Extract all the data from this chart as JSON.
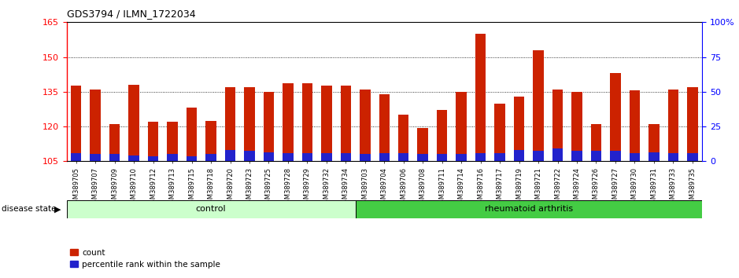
{
  "title": "GDS3794 / ILMN_1722034",
  "categories": [
    "GSM389705",
    "GSM389707",
    "GSM389709",
    "GSM389710",
    "GSM389712",
    "GSM389713",
    "GSM389715",
    "GSM389718",
    "GSM389720",
    "GSM389723",
    "GSM389725",
    "GSM389728",
    "GSM389729",
    "GSM389732",
    "GSM389734",
    "GSM389703",
    "GSM389704",
    "GSM389706",
    "GSM389708",
    "GSM389711",
    "GSM389714",
    "GSM389716",
    "GSM389717",
    "GSM389719",
    "GSM389721",
    "GSM389722",
    "GSM389724",
    "GSM389726",
    "GSM389727",
    "GSM389730",
    "GSM389731",
    "GSM389733",
    "GSM389735"
  ],
  "counts": [
    137.5,
    136.0,
    121.0,
    138.0,
    122.0,
    122.0,
    128.0,
    122.5,
    137.0,
    137.0,
    135.0,
    138.5,
    138.5,
    137.5,
    137.5,
    136.0,
    134.0,
    125.0,
    119.5,
    127.0,
    135.0,
    160.0,
    130.0,
    133.0,
    153.0,
    136.0,
    135.0,
    121.0,
    143.0,
    135.5,
    121.0,
    136.0,
    137.0
  ],
  "percentile_values": [
    108.5,
    108.0,
    108.0,
    107.5,
    107.0,
    108.0,
    107.0,
    108.0,
    110.0,
    109.5,
    109.0,
    108.5,
    108.5,
    108.5,
    108.5,
    108.0,
    108.5,
    108.5,
    108.0,
    108.0,
    108.0,
    108.5,
    108.5,
    110.0,
    109.5,
    110.5,
    109.5,
    109.5,
    109.5,
    108.5,
    109.0,
    108.5,
    108.5
  ],
  "control_count": 15,
  "rheumatoid_count": 18,
  "ymin": 105,
  "ymax": 165,
  "yticks_left": [
    105,
    120,
    135,
    150,
    165
  ],
  "yticks_right": [
    0,
    25,
    50,
    75,
    100
  ],
  "bar_color": "#cc2200",
  "percentile_color": "#2222cc",
  "control_bg": "#ccffcc",
  "ra_bg": "#44cc44",
  "bar_width": 0.55
}
